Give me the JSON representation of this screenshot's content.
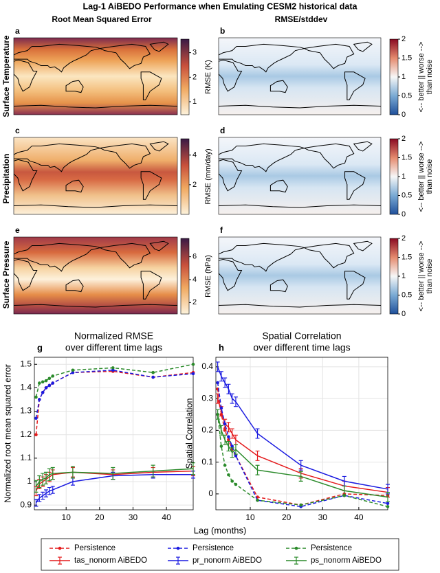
{
  "title": "Lag-1 AiBEDO Performance when Emulating CESM2 historical data",
  "column_titles": [
    "Root Mean Squared Error",
    "RMSE/stddev"
  ],
  "row_labels": [
    "Surface Temperature",
    "Precipitation",
    "Surface Pressure"
  ],
  "shared_xlabel": "Lag (months)",
  "chart_data": [
    {
      "type": "map",
      "panel": "a",
      "cmap": "sequential",
      "colorbar_label": [
        "RMSE (K)"
      ],
      "clim": [
        0.47,
        3.55
      ],
      "cticks": [
        1,
        2,
        3
      ]
    },
    {
      "type": "map",
      "panel": "b",
      "cmap": "diverging",
      "colorbar_label": [
        "<-- better || worse -->",
        "than noise"
      ],
      "clim": [
        0,
        2
      ],
      "cticks": [
        0,
        0.5,
        1,
        1.5,
        2
      ]
    },
    {
      "type": "map",
      "panel": "c",
      "cmap": "sequential",
      "colorbar_label": [
        "RMSE (mm/day)"
      ],
      "clim": [
        0,
        5.1
      ],
      "cticks": [
        2,
        4
      ]
    },
    {
      "type": "map",
      "panel": "d",
      "cmap": "diverging",
      "colorbar_label": [
        "<-- better || worse -->",
        "than noise"
      ],
      "clim": [
        0,
        2
      ],
      "cticks": [
        0,
        0.5,
        1,
        1.5,
        2
      ]
    },
    {
      "type": "map",
      "panel": "e",
      "cmap": "sequential",
      "colorbar_label": [
        "RMSE (hPa)"
      ],
      "clim": [
        1,
        7.6
      ],
      "cticks": [
        2,
        4,
        6
      ]
    },
    {
      "type": "map",
      "panel": "f",
      "cmap": "diverging",
      "colorbar_label": [
        "<-- better || worse -->",
        "than noise"
      ],
      "clim": [
        0,
        2
      ],
      "cticks": [
        0,
        0.5,
        1,
        1.5,
        2
      ]
    },
    {
      "type": "line",
      "panel": "g",
      "title": [
        "Normalized RMSE",
        "over different time lags"
      ],
      "ylabel": "Normalized root mean squared error",
      "x": [
        1,
        2,
        3,
        4,
        5,
        6,
        12,
        24,
        36,
        48
      ],
      "xlim": [
        0.5,
        48
      ],
      "xticks": [
        10,
        20,
        30,
        40
      ],
      "ylim": [
        0.88,
        1.53
      ],
      "yticks": [
        0.9,
        1,
        1.1,
        1.2,
        1.3,
        1.4,
        1.5
      ],
      "grid": true,
      "series": [
        {
          "name": "Persistence",
          "color": "#e41a1c",
          "dash": true,
          "values": [
            1.2,
            1.35,
            1.38,
            1.4,
            1.41,
            1.42,
            1.465,
            1.47,
            1.445,
            1.465
          ]
        },
        {
          "name": "tas_nonorm AiBEDO",
          "color": "#e41a1c",
          "values": [
            0.96,
            0.99,
            1.0,
            1.01,
            1.02,
            1.03,
            1.04,
            1.03,
            1.04,
            1.045
          ],
          "errors": [
            0.02,
            0.02,
            0.02,
            0.02,
            0.02,
            0.02,
            0.02,
            0.02,
            0.02,
            0.02
          ]
        },
        {
          "name": "Persistence",
          "color": "#1a1ae0",
          "dash": true,
          "values": [
            1.27,
            1.35,
            1.38,
            1.4,
            1.41,
            1.42,
            1.465,
            1.475,
            1.445,
            1.46
          ]
        },
        {
          "name": "pr_nonorm AiBEDO",
          "color": "#1a1ae0",
          "values": [
            0.91,
            0.93,
            0.94,
            0.95,
            0.96,
            0.965,
            1.0,
            1.025,
            1.03,
            1.03
          ],
          "errors": [
            0.015,
            0.015,
            0.015,
            0.015,
            0.015,
            0.015,
            0.015,
            0.015,
            0.015,
            0.015
          ]
        },
        {
          "name": "Persistence",
          "color": "#2a8a2a",
          "dash": true,
          "values": [
            1.36,
            1.42,
            1.425,
            1.43,
            1.44,
            1.45,
            1.475,
            1.485,
            1.465,
            1.5
          ]
        },
        {
          "name": "ps_nonorm AiBEDO",
          "color": "#2a8a2a",
          "values": [
            0.98,
            1.0,
            1.01,
            1.015,
            1.03,
            1.035,
            1.04,
            1.035,
            1.045,
            1.055
          ],
          "errors": [
            0.025,
            0.025,
            0.025,
            0.025,
            0.025,
            0.025,
            0.025,
            0.025,
            0.025,
            0.025
          ]
        }
      ]
    },
    {
      "type": "line",
      "panel": "h",
      "title": [
        "Spatial Correlation",
        "over different time lags"
      ],
      "ylabel": "Spatial Correlation",
      "x": [
        1,
        2,
        3,
        4,
        5,
        6,
        12,
        24,
        36,
        48
      ],
      "xlim": [
        0.5,
        48
      ],
      "xticks": [
        10,
        20,
        30,
        40
      ],
      "ylim": [
        -0.05,
        0.43
      ],
      "yticks": [
        0,
        0.1,
        0.2,
        0.3,
        0.4
      ],
      "grid": true,
      "series": [
        {
          "color": "#e41a1c",
          "dash": true,
          "values": [
            0.33,
            0.25,
            0.2,
            0.17,
            0.14,
            0.12,
            -0.01,
            -0.035,
            0.0,
            -0.005
          ]
        },
        {
          "color": "#e41a1c",
          "values": [
            0.3,
            0.26,
            0.22,
            0.21,
            0.19,
            0.17,
            0.12,
            0.065,
            0.025,
            0.005
          ],
          "errors": [
            0.015,
            0.015,
            0.015,
            0.015,
            0.015,
            0.015,
            0.015,
            0.015,
            0.015,
            0.015
          ]
        },
        {
          "color": "#1a1ae0",
          "dash": true,
          "values": [
            0.35,
            0.27,
            0.22,
            0.18,
            0.15,
            0.12,
            -0.02,
            -0.04,
            -0.005,
            -0.03
          ]
        },
        {
          "color": "#1a1ae0",
          "values": [
            0.4,
            0.37,
            0.35,
            0.33,
            0.3,
            0.29,
            0.19,
            0.09,
            0.04,
            0.015
          ],
          "errors": [
            0.015,
            0.015,
            0.015,
            0.015,
            0.015,
            0.015,
            0.015,
            0.015,
            0.015,
            0.015
          ]
        },
        {
          "color": "#2a8a2a",
          "dash": true,
          "values": [
            0.25,
            0.15,
            0.09,
            0.06,
            0.04,
            0.03,
            -0.02,
            -0.035,
            -0.005,
            -0.04
          ]
        },
        {
          "color": "#2a8a2a",
          "values": [
            0.25,
            0.2,
            0.17,
            0.15,
            0.13,
            0.14,
            0.075,
            0.055,
            0.01,
            -0.01
          ],
          "errors": [
            0.015,
            0.015,
            0.015,
            0.015,
            0.015,
            0.015,
            0.015,
            0.015,
            0.015,
            0.015
          ]
        }
      ]
    }
  ]
}
